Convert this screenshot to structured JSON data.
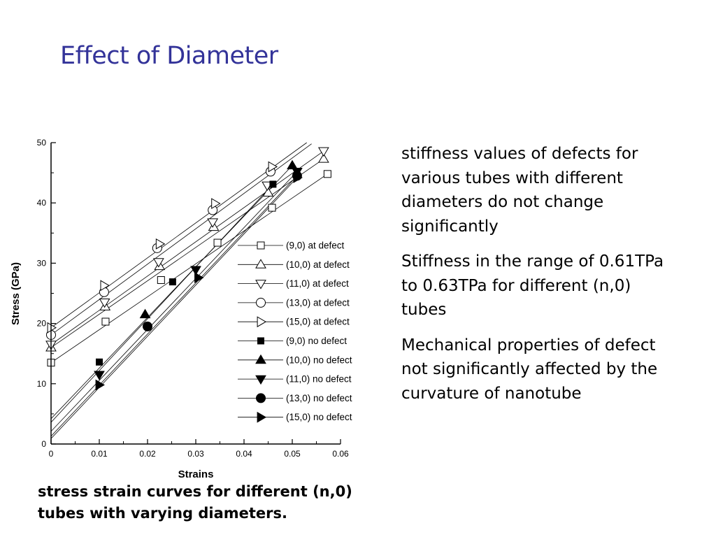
{
  "slide": {
    "title": "Effect of Diameter"
  },
  "caption": [
    "stress strain curves for different (n,0)",
    "tubes with varying diameters."
  ],
  "notes": [
    [
      "stiffness values of defects for",
      "various tubes with different",
      "diameters do not change",
      "significantly"
    ],
    [
      "Stiffness in the range of 0.61TPa",
      "to 0.63TPa for different (n,0)",
      "tubes"
    ],
    [
      "Mechanical properties of defect",
      "not significantly affected by the",
      "curvature of nanotube"
    ]
  ],
  "chart_data": {
    "type": "line",
    "xlabel": "Strains",
    "ylabel": "Stress (GPa)",
    "xlim": [
      0,
      0.06
    ],
    "ylim": [
      0,
      50
    ],
    "xticks": [
      "0",
      "0.01",
      "0.02",
      "0.03",
      "0.04",
      "0.05",
      "0.06"
    ],
    "yticks": [
      "0",
      "10",
      "20",
      "30",
      "40",
      "50"
    ],
    "grid": false,
    "legend": "right",
    "series": [
      {
        "name": "(9,0) at defect",
        "marker": "square-open",
        "x": [
          0,
          0.0113,
          0.0228,
          0.0345,
          0.0458,
          0.0573
        ],
        "y": [
          13.5,
          20.3,
          27.2,
          33.4,
          39.2,
          44.8
        ],
        "line_x": [
          0,
          0.0573
        ],
        "line_y": [
          13.5,
          44.8
        ]
      },
      {
        "name": "(10,0) at defect",
        "marker": "triangle-up-open",
        "x": [
          0,
          0.0112,
          0.0225,
          0.0337,
          0.045,
          0.0565
        ],
        "y": [
          16,
          22.8,
          29.5,
          36,
          41.7,
          47.3
        ],
        "line_x": [
          0,
          0.0565
        ],
        "line_y": [
          16,
          47.3
        ]
      },
      {
        "name": "(11,0) at defect",
        "marker": "triangle-down-open",
        "x": [
          0,
          0.0111,
          0.0223,
          0.0335,
          0.0448,
          0.0565
        ],
        "y": [
          16.5,
          23.5,
          30.2,
          36.8,
          42.9,
          48.6
        ],
        "line_x": [
          0,
          0.0565
        ],
        "line_y": [
          16.5,
          48.6
        ]
      },
      {
        "name": "(13,0) at defect",
        "marker": "circle-open",
        "x": [
          0,
          0.011,
          0.022,
          0.0335,
          0.0455
        ],
        "y": [
          18.1,
          25.2,
          32.5,
          38.8,
          45.2
        ],
        "line_x": [
          0,
          0.054
        ],
        "line_y": [
          18.1,
          49.8
        ]
      },
      {
        "name": "(15,0) at defect",
        "marker": "triangle-right-open",
        "x": [
          0,
          0.011,
          0.0225,
          0.034,
          0.0458
        ],
        "y": [
          19.3,
          26.3,
          33.2,
          39.9,
          46
        ],
        "line_x": [
          0,
          0.053
        ],
        "line_y": [
          19.3,
          50
        ]
      },
      {
        "name": "(9,0) no defect",
        "marker": "square-filled",
        "x": [
          0.01,
          0.0252,
          0.046
        ],
        "y": [
          13.6,
          26.9,
          43.1
        ],
        "line_x": [
          0,
          0.046
        ],
        "line_y": [
          3.6,
          43.1
        ]
      },
      {
        "name": "(10,0) no defect",
        "marker": "triangle-up-filled",
        "x": [
          0.0195,
          0.05
        ],
        "y": [
          21.5,
          46.2
        ],
        "line_x": [
          0,
          0.05
        ],
        "line_y": [
          4.2,
          46.2
        ]
      },
      {
        "name": "(11,0) no defect",
        "marker": "triangle-down-filled",
        "x": [
          0.01,
          0.03,
          0.051
        ],
        "y": [
          11.5,
          28.9,
          45.2
        ],
        "line_x": [
          0,
          0.051
        ],
        "line_y": [
          2.1,
          45.2
        ]
      },
      {
        "name": "(13,0) no defect",
        "marker": "circle-filled",
        "x": [
          0.02,
          0.051
        ],
        "y": [
          19.5,
          44.5
        ],
        "line_x": [
          0,
          0.051
        ],
        "line_y": [
          1.3,
          44.5
        ]
      },
      {
        "name": "(15,0) no defect",
        "marker": "triangle-right-filled",
        "x": [
          0.01,
          0.0305,
          0.051
        ],
        "y": [
          9.8,
          27.6,
          44.2
        ],
        "line_x": [
          0,
          0.051
        ],
        "line_y": [
          0.9,
          44.2
        ]
      }
    ]
  }
}
